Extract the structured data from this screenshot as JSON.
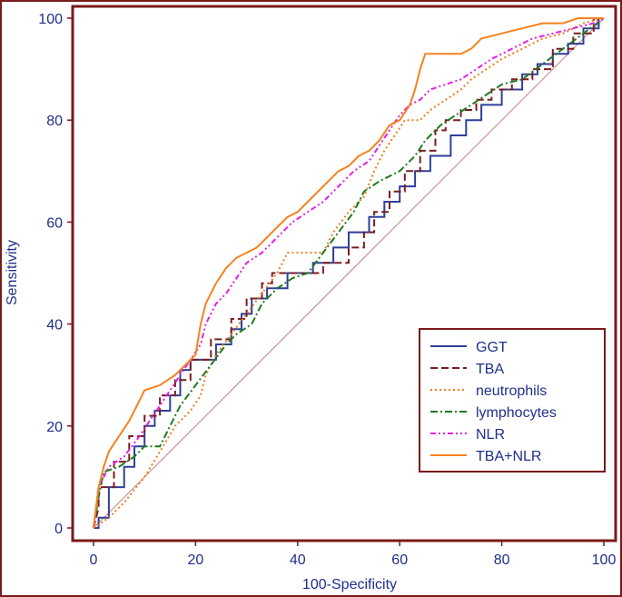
{
  "chart_data": {
    "type": "line",
    "title": "",
    "xlabel": "100-Specificity",
    "ylabel": "Sensitivity",
    "xlim": [
      0,
      100
    ],
    "ylim": [
      0,
      100
    ],
    "xticks": [
      "0",
      "20",
      "40",
      "60",
      "80",
      "100"
    ],
    "yticks": [
      "0",
      "20",
      "40",
      "60",
      "80",
      "100"
    ],
    "legend_position": "bottom-right",
    "reference_line": {
      "from": [
        0,
        0
      ],
      "to": [
        100,
        100
      ],
      "color": "#c08080"
    },
    "series": [
      {
        "name": "GGT",
        "color": "#2f3f9a",
        "dash": "solid",
        "points": [
          [
            0,
            0
          ],
          [
            1,
            0
          ],
          [
            1,
            2
          ],
          [
            3,
            2
          ],
          [
            3,
            8
          ],
          [
            6,
            8
          ],
          [
            6,
            12
          ],
          [
            8,
            12
          ],
          [
            8,
            16
          ],
          [
            10,
            16
          ],
          [
            10,
            20
          ],
          [
            12,
            20
          ],
          [
            12,
            23
          ],
          [
            15,
            23
          ],
          [
            15,
            26
          ],
          [
            17,
            26
          ],
          [
            17,
            31
          ],
          [
            19,
            31
          ],
          [
            19,
            33
          ],
          [
            24,
            33
          ],
          [
            24,
            36
          ],
          [
            27,
            36
          ],
          [
            27,
            39
          ],
          [
            29,
            39
          ],
          [
            29,
            42
          ],
          [
            31,
            42
          ],
          [
            31,
            45
          ],
          [
            34,
            45
          ],
          [
            34,
            47
          ],
          [
            38,
            47
          ],
          [
            38,
            50
          ],
          [
            43,
            50
          ],
          [
            43,
            52
          ],
          [
            47,
            52
          ],
          [
            47,
            55
          ],
          [
            50,
            55
          ],
          [
            50,
            58
          ],
          [
            54,
            58
          ],
          [
            54,
            61
          ],
          [
            57,
            61
          ],
          [
            57,
            64
          ],
          [
            60,
            64
          ],
          [
            60,
            67
          ],
          [
            63,
            67
          ],
          [
            63,
            70
          ],
          [
            66,
            70
          ],
          [
            66,
            73
          ],
          [
            70,
            73
          ],
          [
            70,
            77
          ],
          [
            73,
            77
          ],
          [
            73,
            80
          ],
          [
            76,
            80
          ],
          [
            76,
            83
          ],
          [
            80,
            83
          ],
          [
            80,
            86
          ],
          [
            84,
            86
          ],
          [
            84,
            89
          ],
          [
            87,
            89
          ],
          [
            87,
            91
          ],
          [
            90,
            91
          ],
          [
            90,
            93
          ],
          [
            93,
            93
          ],
          [
            93,
            95
          ],
          [
            96,
            95
          ],
          [
            96,
            98
          ],
          [
            99,
            98
          ],
          [
            99,
            100
          ],
          [
            100,
            100
          ]
        ]
      },
      {
        "name": "TBA",
        "color": "#7a1e1e",
        "dash": "8,4",
        "points": [
          [
            0,
            0
          ],
          [
            1,
            4
          ],
          [
            1,
            8
          ],
          [
            4,
            8
          ],
          [
            4,
            13
          ],
          [
            7,
            13
          ],
          [
            7,
            18
          ],
          [
            10,
            18
          ],
          [
            10,
            22
          ],
          [
            13,
            22
          ],
          [
            13,
            26
          ],
          [
            16,
            26
          ],
          [
            16,
            29
          ],
          [
            19,
            29
          ],
          [
            19,
            33
          ],
          [
            23,
            33
          ],
          [
            23,
            37
          ],
          [
            27,
            37
          ],
          [
            27,
            41
          ],
          [
            30,
            41
          ],
          [
            30,
            45
          ],
          [
            33,
            45
          ],
          [
            33,
            48
          ],
          [
            35,
            48
          ],
          [
            35,
            50
          ],
          [
            45,
            50
          ],
          [
            45,
            52
          ],
          [
            50,
            52
          ],
          [
            50,
            55
          ],
          [
            53,
            55
          ],
          [
            53,
            58
          ],
          [
            55,
            58
          ],
          [
            55,
            62
          ],
          [
            58,
            62
          ],
          [
            58,
            66
          ],
          [
            61,
            66
          ],
          [
            61,
            70
          ],
          [
            64,
            70
          ],
          [
            64,
            74
          ],
          [
            67,
            74
          ],
          [
            67,
            78
          ],
          [
            69,
            78
          ],
          [
            69,
            80
          ],
          [
            72,
            80
          ],
          [
            72,
            82
          ],
          [
            75,
            82
          ],
          [
            75,
            84
          ],
          [
            78,
            84
          ],
          [
            78,
            86
          ],
          [
            82,
            86
          ],
          [
            82,
            88
          ],
          [
            86,
            88
          ],
          [
            86,
            90
          ],
          [
            90,
            90
          ],
          [
            90,
            94
          ],
          [
            94,
            94
          ],
          [
            94,
            97
          ],
          [
            98,
            97
          ],
          [
            98,
            100
          ],
          [
            100,
            100
          ]
        ]
      },
      {
        "name": "neutrophils",
        "color": "#f07a20",
        "dash": "2,3",
        "points": [
          [
            0,
            0
          ],
          [
            3,
            2
          ],
          [
            6,
            5
          ],
          [
            10,
            10
          ],
          [
            13,
            15
          ],
          [
            16,
            20
          ],
          [
            19,
            23
          ],
          [
            21,
            26
          ],
          [
            22,
            30
          ],
          [
            24,
            34
          ],
          [
            27,
            38
          ],
          [
            30,
            42
          ],
          [
            33,
            46
          ],
          [
            36,
            50
          ],
          [
            38,
            54
          ],
          [
            45,
            54
          ],
          [
            47,
            58
          ],
          [
            50,
            62
          ],
          [
            53,
            65
          ],
          [
            55,
            70
          ],
          [
            57,
            74
          ],
          [
            59,
            77
          ],
          [
            61,
            80
          ],
          [
            64,
            80
          ],
          [
            66,
            82
          ],
          [
            69,
            84
          ],
          [
            72,
            86
          ],
          [
            74,
            88
          ],
          [
            77,
            90
          ],
          [
            80,
            92
          ],
          [
            84,
            94
          ],
          [
            88,
            96
          ],
          [
            92,
            97
          ],
          [
            96,
            99
          ],
          [
            100,
            100
          ]
        ]
      },
      {
        "name": "lymphocytes",
        "color": "#1f7a1f",
        "dash": "8,3,2,3",
        "points": [
          [
            0,
            0
          ],
          [
            1,
            6
          ],
          [
            2,
            11
          ],
          [
            5,
            12
          ],
          [
            8,
            14
          ],
          [
            10,
            16
          ],
          [
            13,
            16
          ],
          [
            15,
            20
          ],
          [
            17,
            24
          ],
          [
            20,
            28
          ],
          [
            23,
            32
          ],
          [
            26,
            36
          ],
          [
            28,
            38
          ],
          [
            31,
            40
          ],
          [
            33,
            44
          ],
          [
            36,
            47
          ],
          [
            39,
            49
          ],
          [
            42,
            50
          ],
          [
            45,
            54
          ],
          [
            48,
            58
          ],
          [
            51,
            62
          ],
          [
            53,
            66
          ],
          [
            56,
            68
          ],
          [
            58,
            69
          ],
          [
            60,
            70
          ],
          [
            63,
            73
          ],
          [
            65,
            76
          ],
          [
            68,
            79
          ],
          [
            71,
            81
          ],
          [
            74,
            83
          ],
          [
            77,
            85
          ],
          [
            80,
            87
          ],
          [
            84,
            88
          ],
          [
            88,
            91
          ],
          [
            92,
            94
          ],
          [
            96,
            97
          ],
          [
            100,
            100
          ]
        ]
      },
      {
        "name": "NLR",
        "color": "#e020e0",
        "dash": "6,3,2,3,2,3",
        "points": [
          [
            0,
            0
          ],
          [
            1,
            8
          ],
          [
            3,
            12
          ],
          [
            6,
            14
          ],
          [
            9,
            18
          ],
          [
            11,
            21
          ],
          [
            13,
            24
          ],
          [
            15,
            27
          ],
          [
            17,
            30
          ],
          [
            19,
            33
          ],
          [
            21,
            36
          ],
          [
            22,
            40
          ],
          [
            24,
            44
          ],
          [
            26,
            46
          ],
          [
            28,
            49
          ],
          [
            30,
            52
          ],
          [
            33,
            54
          ],
          [
            36,
            57
          ],
          [
            39,
            60
          ],
          [
            42,
            62
          ],
          [
            45,
            64
          ],
          [
            48,
            67
          ],
          [
            51,
            70
          ],
          [
            54,
            72
          ],
          [
            56,
            75
          ],
          [
            58,
            78
          ],
          [
            60,
            81
          ],
          [
            62,
            83
          ],
          [
            64,
            84
          ],
          [
            66,
            86
          ],
          [
            69,
            87
          ],
          [
            72,
            88
          ],
          [
            75,
            90
          ],
          [
            78,
            92
          ],
          [
            82,
            94
          ],
          [
            86,
            96
          ],
          [
            90,
            97
          ],
          [
            94,
            98
          ],
          [
            98,
            99
          ],
          [
            100,
            100
          ]
        ]
      },
      {
        "name": "TBA+NLR",
        "color": "#f58220",
        "dash": "solid",
        "points": [
          [
            0,
            0
          ],
          [
            1,
            8
          ],
          [
            2,
            12
          ],
          [
            3,
            15
          ],
          [
            5,
            18
          ],
          [
            7,
            21
          ],
          [
            9,
            25
          ],
          [
            10,
            27
          ],
          [
            13,
            28
          ],
          [
            16,
            30
          ],
          [
            18,
            32
          ],
          [
            20,
            34
          ],
          [
            21,
            40
          ],
          [
            22,
            44
          ],
          [
            24,
            48
          ],
          [
            26,
            51
          ],
          [
            28,
            53
          ],
          [
            30,
            54
          ],
          [
            32,
            55
          ],
          [
            34,
            57
          ],
          [
            36,
            59
          ],
          [
            38,
            61
          ],
          [
            40,
            62
          ],
          [
            42,
            64
          ],
          [
            44,
            66
          ],
          [
            46,
            68
          ],
          [
            48,
            70
          ],
          [
            50,
            71
          ],
          [
            52,
            73
          ],
          [
            54,
            74
          ],
          [
            56,
            76
          ],
          [
            58,
            79
          ],
          [
            60,
            80
          ],
          [
            62,
            83
          ],
          [
            63,
            86
          ],
          [
            64,
            90
          ],
          [
            65,
            93
          ],
          [
            72,
            93
          ],
          [
            74,
            94
          ],
          [
            76,
            96
          ],
          [
            80,
            97
          ],
          [
            84,
            98
          ],
          [
            88,
            99
          ],
          [
            92,
            99
          ],
          [
            95,
            100
          ],
          [
            100,
            100
          ]
        ]
      }
    ]
  }
}
